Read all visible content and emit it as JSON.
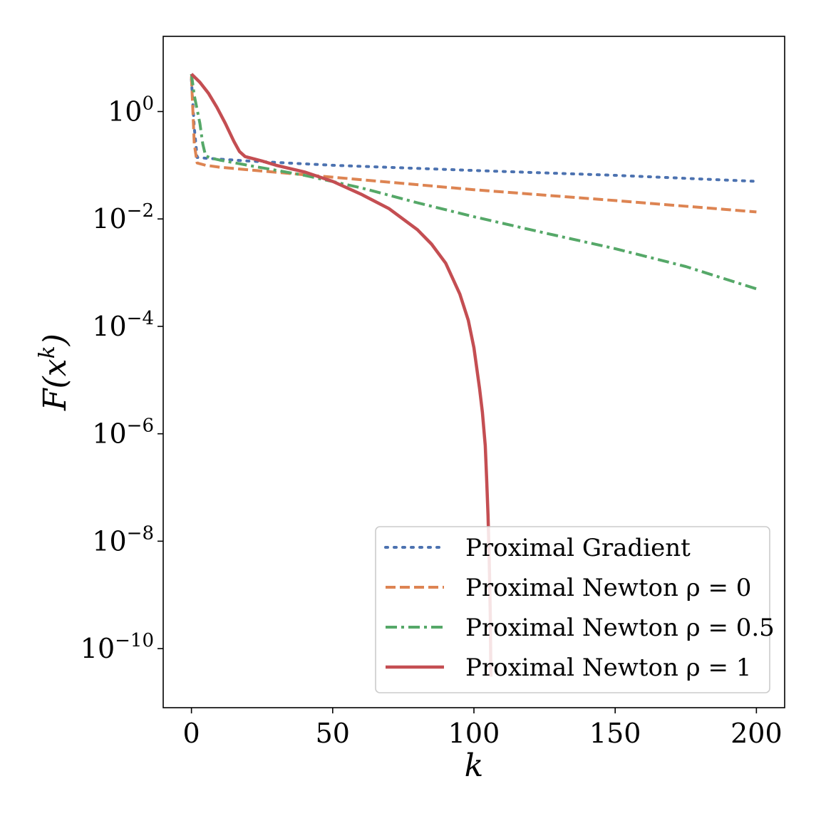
{
  "chart_data": {
    "type": "line",
    "xlabel": "k",
    "ylabel": "F(x^k)",
    "xlim": [
      -10,
      210
    ],
    "ylim_log10": [
      -11.1,
      1.4
    ],
    "y_scale": "log",
    "grid": false,
    "legend_position": "lower-right",
    "x_ticks": [
      {
        "value": 0,
        "label": "0"
      },
      {
        "value": 50,
        "label": "50"
      },
      {
        "value": 100,
        "label": "100"
      },
      {
        "value": 150,
        "label": "150"
      },
      {
        "value": 200,
        "label": "200"
      }
    ],
    "y_ticks": [
      {
        "exp": 0,
        "base": "10",
        "sup": "0"
      },
      {
        "exp": -2,
        "base": "10",
        "sup": "−2"
      },
      {
        "exp": -4,
        "base": "10",
        "sup": "−4"
      },
      {
        "exp": -6,
        "base": "10",
        "sup": "−6"
      },
      {
        "exp": -8,
        "base": "10",
        "sup": "−8"
      },
      {
        "exp": -10,
        "base": "10",
        "sup": "−10"
      }
    ],
    "series": [
      {
        "name": "Proximal Gradient",
        "color": "#4c72b0",
        "dash": "dotted",
        "x": [
          0,
          1,
          2,
          5,
          10,
          20,
          50,
          100,
          150,
          200
        ],
        "y": [
          4.0,
          0.5,
          0.14,
          0.135,
          0.13,
          0.12,
          0.1,
          0.08,
          0.065,
          0.05
        ]
      },
      {
        "name": "Proximal Newton ρ = 0",
        "color": "#dd8452",
        "dash": "dashed",
        "x": [
          0,
          1,
          2,
          5,
          10,
          25,
          50,
          100,
          150,
          200
        ],
        "y": [
          4.5,
          0.25,
          0.11,
          0.1,
          0.092,
          0.078,
          0.06,
          0.035,
          0.022,
          0.0135
        ]
      },
      {
        "name": "Proximal Newton ρ = 0.5",
        "color": "#55a868",
        "dash": "dashdot",
        "x": [
          0,
          1,
          3,
          4,
          5,
          7,
          10,
          20,
          40,
          60,
          80,
          100,
          125,
          150,
          175,
          200
        ],
        "y": [
          5.0,
          2.0,
          0.6,
          0.25,
          0.15,
          0.135,
          0.125,
          0.1,
          0.065,
          0.038,
          0.02,
          0.011,
          0.0055,
          0.0028,
          0.0013,
          0.0005
        ]
      },
      {
        "name": "Proximal Newton ρ = 1",
        "color": "#c44e52",
        "dash": "solid",
        "x": [
          0,
          3,
          6,
          9,
          12,
          15,
          17,
          19,
          25,
          30,
          40,
          50,
          60,
          70,
          80,
          85,
          90,
          95,
          98,
          100,
          102,
          103,
          104,
          104.5,
          105,
          105.4,
          105.8,
          106
        ],
        "y": [
          5.0,
          3.5,
          2.2,
          1.2,
          0.6,
          0.28,
          0.18,
          0.145,
          0.12,
          0.1,
          0.075,
          0.05,
          0.029,
          0.0155,
          0.0063,
          0.0034,
          0.0015,
          0.0004,
          0.00013,
          4e-05,
          7e-06,
          2.5e-06,
          6e-07,
          1.5e-07,
          3e-08,
          5e-09,
          4e-10,
          3e-11
        ]
      }
    ]
  }
}
